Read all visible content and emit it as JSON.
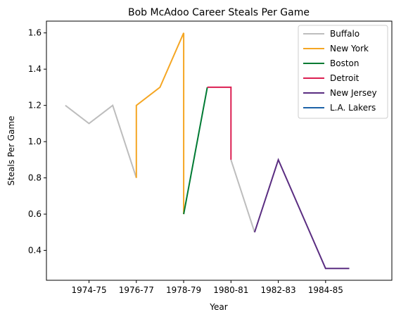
{
  "chart_data": {
    "type": "line",
    "title": "Bob McAdoo Career Steals Per Game",
    "xlabel": "Year",
    "ylabel": "Steals Per Game",
    "xlim": [
      1972.7,
      1987.3
    ],
    "ylim": [
      0.235,
      1.665
    ],
    "x_ticks": [
      {
        "value": 1974.5,
        "label": "1974-75"
      },
      {
        "value": 1976.5,
        "label": "1976-77"
      },
      {
        "value": 1978.5,
        "label": "1978-79"
      },
      {
        "value": 1980.5,
        "label": "1980-81"
      },
      {
        "value": 1982.5,
        "label": "1982-83"
      },
      {
        "value": 1984.5,
        "label": "1984-85"
      }
    ],
    "y_ticks": [
      0.4,
      0.6,
      0.8,
      1.0,
      1.2,
      1.4,
      1.6
    ],
    "y_tick_labels": [
      "0.4",
      "0.6",
      "0.8",
      "1.0",
      "1.2",
      "1.4",
      "1.6"
    ],
    "grid": false,
    "legend_position": "top-right",
    "series": [
      {
        "name": "Buffalo",
        "color": "#bdbdbd",
        "x": [
          1973.5,
          1974.5,
          1975.5,
          1976.5
        ],
        "y": [
          1.2,
          1.1,
          1.2,
          0.8
        ]
      },
      {
        "name": "New York",
        "color": "#f5a623",
        "x": [
          1976.5,
          1976.5,
          1977.5,
          1978.5,
          1978.5
        ],
        "y": [
          0.8,
          1.2,
          1.3,
          1.6,
          0.6
        ]
      },
      {
        "name": "Boston",
        "color": "#007a33",
        "x": [
          1978.5,
          1979.5
        ],
        "y": [
          0.6,
          1.3
        ]
      },
      {
        "name": "Detroit",
        "color": "#dc1f52",
        "x": [
          1979.5,
          1980.5,
          1980.5
        ],
        "y": [
          1.3,
          1.3,
          0.9
        ]
      },
      {
        "name": "New Jersey",
        "color": "#5a2d81",
        "x": [
          1981.5,
          1982.5,
          1983.5,
          1984.5,
          1985.5
        ],
        "y": [
          0.5,
          0.9,
          0.6,
          0.3,
          0.3
        ]
      },
      {
        "name": "L.A. Lakers",
        "color": "#1d62a8",
        "x": [],
        "y": []
      }
    ],
    "connector": {
      "color": "#bdbdbd",
      "x": [
        1980.5,
        1981.5
      ],
      "y": [
        0.9,
        0.5
      ]
    }
  }
}
